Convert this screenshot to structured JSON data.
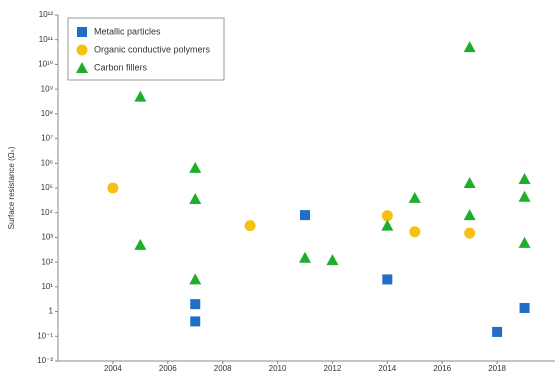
{
  "chart_data": {
    "type": "scatter",
    "ylabel": "Surface resistance (Ωₛ)",
    "log_y": true,
    "grid": false,
    "legend": "upper left",
    "xlim": [
      2002,
      2020
    ],
    "xticks": [
      2004,
      2006,
      2008,
      2010,
      2012,
      2014,
      2016,
      2018
    ],
    "ylim": [
      0.01,
      1000000000000
    ],
    "yticks": [
      {
        "value": 0.01,
        "label": "10⁻²"
      },
      {
        "value": 0.1,
        "label": "10⁻¹"
      },
      1,
      {
        "value": 10,
        "label": "10¹"
      },
      {
        "value": 100,
        "label": "10²"
      },
      {
        "value": 1000,
        "label": "10³"
      },
      {
        "value": 10000,
        "label": "10⁴"
      },
      {
        "value": 100000,
        "label": "10⁵"
      },
      {
        "value": 1000000,
        "label": "10⁶"
      },
      {
        "value": 10000000,
        "label": "10⁷"
      },
      {
        "value": 100000000,
        "label": "10⁸"
      },
      {
        "value": 1000000000,
        "label": "10⁹"
      },
      {
        "value": 10000000000,
        "label": "10¹⁰"
      },
      {
        "value": 100000000000,
        "label": "10¹¹"
      },
      {
        "value": 1000000000000,
        "label": "10¹²"
      }
    ],
    "series": [
      {
        "name": "Metallic particles",
        "color": "#1f6fc5",
        "marker": "square",
        "x": [
          2007,
          2007,
          2011,
          2014,
          2018,
          2019
        ],
        "values": [
          2,
          0.4,
          8000,
          20,
          0.15,
          1.4
        ]
      },
      {
        "name": "Organic conductive polymers",
        "color": "#f5c010",
        "marker": "circle",
        "x": [
          2004,
          2009,
          2014,
          2015,
          2017
        ],
        "values": [
          100000,
          3000,
          7500,
          1700,
          1500
        ]
      },
      {
        "name": "Carbon fillers",
        "color": "#1fae2b",
        "marker": "triangle",
        "x": [
          2005,
          2005,
          2007,
          2007,
          2007,
          2011,
          2012,
          2014,
          2015,
          2017,
          2017,
          2017,
          2019,
          2019,
          2019
        ],
        "values": [
          500000000,
          500,
          650000,
          36000,
          20,
          150,
          120,
          3000,
          40000,
          50000000000,
          160000,
          8000,
          230000,
          44000,
          600
        ]
      }
    ]
  }
}
